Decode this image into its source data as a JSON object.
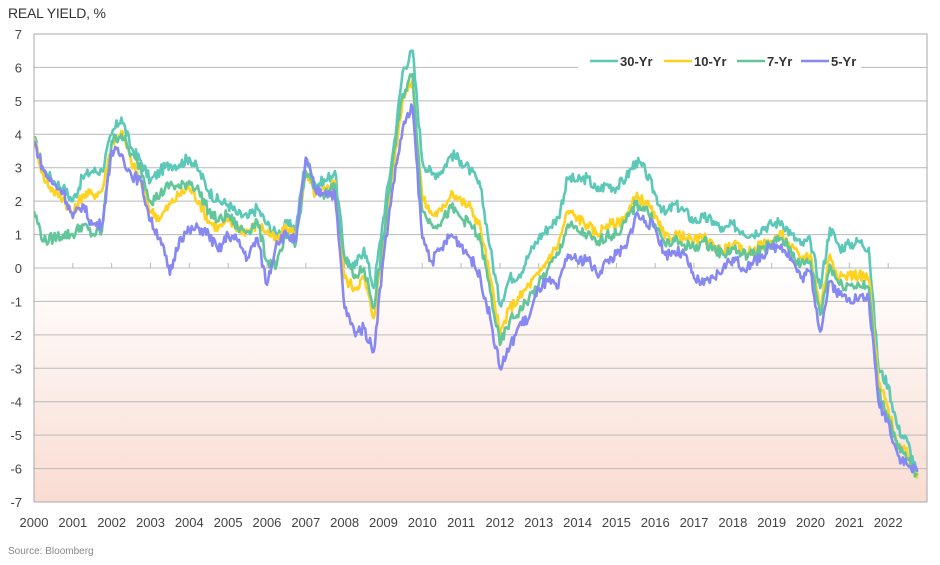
{
  "chart_data": {
    "type": "line",
    "title": "REAL YIELD, %",
    "source": "Source: Bloomberg",
    "xlabel": "",
    "ylabel": "REAL YIELD, %",
    "xlim": [
      2000,
      2023
    ],
    "ylim": [
      -7,
      7
    ],
    "y_ticks": [
      "7",
      "6",
      "5",
      "4",
      "3",
      "2",
      "1",
      "0",
      "-1",
      "-2",
      "-3",
      "-4",
      "-5",
      "-6",
      "-7"
    ],
    "x_ticks": [
      "2000",
      "2001",
      "2002",
      "2003",
      "2004",
      "2005",
      "2006",
      "2007",
      "2008",
      "2009",
      "2010",
      "2011",
      "2012",
      "2013",
      "2014",
      "2015",
      "2016",
      "2017",
      "2018",
      "2019",
      "2020",
      "2021",
      "2022"
    ],
    "grid": true,
    "legend_position": "top-right",
    "x": [
      2000.0,
      2000.25,
      2000.5,
      2000.75,
      2001.0,
      2001.25,
      2001.5,
      2001.75,
      2002.0,
      2002.25,
      2002.5,
      2002.75,
      2003.0,
      2003.25,
      2003.5,
      2003.75,
      2004.0,
      2004.25,
      2004.5,
      2004.75,
      2005.0,
      2005.25,
      2005.5,
      2005.75,
      2006.0,
      2006.25,
      2006.5,
      2006.75,
      2007.0,
      2007.25,
      2007.5,
      2007.75,
      2008.0,
      2008.25,
      2008.5,
      2008.75,
      2009.0,
      2009.25,
      2009.5,
      2009.75,
      2010.0,
      2010.25,
      2010.5,
      2010.75,
      2011.0,
      2011.25,
      2011.5,
      2011.75,
      2012.0,
      2012.25,
      2012.5,
      2012.75,
      2013.0,
      2013.25,
      2013.5,
      2013.75,
      2014.0,
      2014.25,
      2014.5,
      2014.75,
      2015.0,
      2015.25,
      2015.5,
      2015.75,
      2016.0,
      2016.25,
      2016.5,
      2016.75,
      2017.0,
      2017.25,
      2017.5,
      2017.75,
      2018.0,
      2018.25,
      2018.5,
      2018.75,
      2019.0,
      2019.25,
      2019.5,
      2019.75,
      2020.0,
      2020.25,
      2020.5,
      2020.75,
      2021.0,
      2021.25,
      2021.5,
      2021.75,
      2022.0,
      2022.25,
      2022.5,
      2022.75
    ],
    "series": [
      {
        "name": "30-Yr",
        "color": "#5cc8b8",
        "values": [
          3.9,
          2.9,
          2.6,
          2.4,
          2.0,
          2.7,
          2.9,
          2.9,
          4.0,
          4.5,
          3.6,
          3.2,
          2.6,
          2.9,
          3.1,
          3.1,
          3.3,
          2.9,
          2.3,
          2.0,
          1.9,
          1.6,
          1.5,
          1.8,
          1.3,
          1.0,
          1.3,
          1.2,
          3.3,
          2.5,
          2.6,
          2.9,
          0.3,
          0.0,
          0.6,
          -0.6,
          1.5,
          3.5,
          5.9,
          6.5,
          3.2,
          2.8,
          2.9,
          3.4,
          3.2,
          2.9,
          2.4,
          0.6,
          -1.1,
          -0.3,
          -0.2,
          0.4,
          0.9,
          1.2,
          1.5,
          2.7,
          2.6,
          2.7,
          2.3,
          2.5,
          2.4,
          2.7,
          3.2,
          2.9,
          2.2,
          1.6,
          1.9,
          1.7,
          1.4,
          1.5,
          1.4,
          1.1,
          1.3,
          1.1,
          1.0,
          1.2,
          1.3,
          1.4,
          1.0,
          0.7,
          0.8,
          -0.6,
          1.2,
          0.6,
          0.7,
          0.8,
          0.6,
          -3.0,
          -3.5,
          -4.8,
          -5.2,
          -6.2
        ]
      },
      {
        "name": "10-Yr",
        "color": "#ffd21f",
        "values": [
          3.9,
          2.7,
          2.3,
          2.1,
          1.6,
          2.2,
          2.2,
          2.3,
          3.7,
          4.1,
          3.2,
          2.6,
          1.7,
          1.5,
          1.9,
          2.2,
          2.4,
          2.0,
          1.4,
          1.2,
          1.4,
          1.2,
          1.1,
          1.3,
          1.1,
          0.8,
          1.2,
          1.0,
          2.8,
          2.2,
          2.3,
          2.6,
          -0.3,
          -0.6,
          -0.3,
          -1.5,
          0.8,
          3.0,
          5.1,
          5.6,
          2.1,
          1.6,
          1.7,
          2.3,
          2.0,
          1.8,
          1.2,
          -0.3,
          -2.0,
          -1.2,
          -0.9,
          -0.5,
          -0.2,
          0.3,
          0.7,
          1.7,
          1.5,
          1.3,
          1.0,
          1.3,
          1.3,
          1.6,
          2.1,
          2.0,
          1.5,
          0.9,
          1.0,
          0.9,
          0.8,
          0.9,
          0.7,
          0.5,
          0.7,
          0.5,
          0.5,
          0.7,
          0.8,
          1.0,
          0.6,
          0.3,
          0.4,
          -1.2,
          0.4,
          -0.3,
          -0.2,
          -0.2,
          -0.3,
          -3.4,
          -4.2,
          -5.3,
          -5.6,
          -6.3
        ]
      },
      {
        "name": "7-Yr",
        "color": "#62c69a",
        "values": [
          1.7,
          0.8,
          0.9,
          1.0,
          1.0,
          1.3,
          1.0,
          1.1,
          3.8,
          4.0,
          3.4,
          3.0,
          2.0,
          2.2,
          2.5,
          2.4,
          2.6,
          2.3,
          1.7,
          1.4,
          1.6,
          1.2,
          1.1,
          1.4,
          0.2,
          0.1,
          0.9,
          0.8,
          2.9,
          2.3,
          2.2,
          2.5,
          0.3,
          -0.3,
          0.0,
          -1.2,
          0.9,
          3.3,
          5.2,
          5.8,
          1.7,
          1.3,
          1.4,
          1.8,
          1.5,
          1.3,
          0.8,
          -0.7,
          -2.3,
          -1.6,
          -1.3,
          -0.9,
          -0.5,
          0.0,
          0.4,
          1.3,
          1.1,
          1.0,
          0.7,
          1.0,
          1.0,
          1.4,
          1.9,
          1.8,
          1.3,
          0.7,
          0.8,
          0.7,
          0.6,
          0.8,
          0.6,
          0.4,
          0.6,
          0.4,
          0.4,
          0.6,
          0.7,
          0.9,
          0.5,
          0.1,
          0.2,
          -1.4,
          0.1,
          -0.5,
          -0.5,
          -0.5,
          -0.6,
          -3.7,
          -4.4,
          -5.4,
          -5.7,
          -6.2
        ]
      },
      {
        "name": "5-Yr",
        "color": "#8888f2",
        "values": [
          3.8,
          2.9,
          2.5,
          2.3,
          1.5,
          1.9,
          1.3,
          1.3,
          3.5,
          3.4,
          2.8,
          2.6,
          1.4,
          0.9,
          -0.2,
          0.9,
          1.1,
          1.2,
          1.0,
          0.5,
          1.0,
          0.8,
          0.3,
          0.9,
          -0.5,
          0.8,
          1.0,
          0.8,
          3.3,
          2.3,
          2.3,
          2.2,
          -1.2,
          -1.9,
          -1.8,
          -2.5,
          0.3,
          2.5,
          4.2,
          4.8,
          0.9,
          0.2,
          0.6,
          1.0,
          0.7,
          0.3,
          -0.3,
          -1.5,
          -3.0,
          -2.4,
          -1.7,
          -1.5,
          -0.6,
          -0.4,
          -0.6,
          0.4,
          0.2,
          0.3,
          -0.2,
          0.2,
          0.4,
          0.6,
          1.6,
          1.4,
          1.2,
          0.4,
          0.5,
          0.4,
          -0.3,
          -0.5,
          -0.3,
          0.0,
          0.3,
          0.0,
          0.1,
          0.4,
          0.6,
          0.7,
          0.3,
          -0.3,
          -0.1,
          -1.9,
          -0.4,
          -0.8,
          -0.9,
          -0.9,
          -0.9,
          -4.0,
          -4.6,
          -5.6,
          -5.9,
          -6.1
        ]
      }
    ]
  }
}
